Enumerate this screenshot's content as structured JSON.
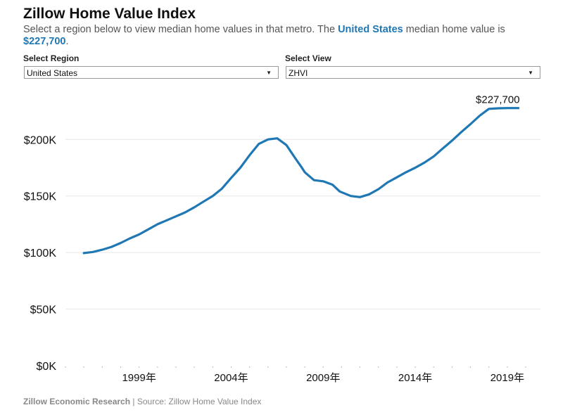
{
  "header": {
    "title": "Zillow Home Value Index",
    "subtitle_before": "Select a region below to view median home values in that metro. The ",
    "subtitle_region": "United States",
    "subtitle_mid": " median home value is ",
    "subtitle_value": "$227,700",
    "subtitle_after": "."
  },
  "controls": {
    "region_label": "Select Region",
    "region_value": "United States",
    "view_label": "Select View",
    "view_value": "ZHVI"
  },
  "footer": {
    "source_org": "Zillow Economic Research",
    "separator": " | ",
    "source_text": "Source: Zillow Home Value Index"
  },
  "colors": {
    "line": "#1f77b4",
    "accent": "#1f77b4"
  },
  "chart_data": {
    "type": "line",
    "title": "",
    "xlabel": "",
    "ylabel": "",
    "ylim": [
      0,
      230000
    ],
    "xlim": [
      1995.0,
      2020.8
    ],
    "y_ticks": [
      0,
      50000,
      100000,
      150000,
      200000
    ],
    "y_tick_labels": [
      "$0K",
      "$50K",
      "$100K",
      "$150K",
      "$200K"
    ],
    "x_ticks": [
      1999,
      2004,
      2009,
      2014,
      2019
    ],
    "x_tick_labels": [
      "1999年",
      "2004年",
      "2009年",
      "2014年",
      "2019年"
    ],
    "grid": true,
    "end_label": "$227,700",
    "series": [
      {
        "x": [
          1996.0,
          1996.5,
          1997.0,
          1997.5,
          1998.0,
          1998.5,
          1999.0,
          1999.5,
          2000.0,
          2000.5,
          2001.0,
          2001.5,
          2002.0,
          2002.5,
          2003.0,
          2003.5,
          2004.0,
          2004.5,
          2005.0,
          2005.5,
          2006.0,
          2006.5,
          2007.0,
          2007.5,
          2007.8,
          2008.0,
          2008.5,
          2009.0,
          2009.5,
          2009.9,
          2010.5,
          2011.0,
          2011.5,
          2012.0,
          2012.5,
          2013.0,
          2013.5,
          2014.0,
          2014.5,
          2015.0,
          2015.5,
          2016.0,
          2016.5,
          2017.0,
          2017.5,
          2018.0,
          2018.5,
          2019.0,
          2019.3,
          2019.6
        ],
        "y": [
          99500,
          100500,
          102500,
          105000,
          108500,
          112500,
          116000,
          120500,
          125000,
          128500,
          132000,
          135500,
          140000,
          145000,
          150000,
          156500,
          166000,
          175000,
          186000,
          196000,
          200000,
          201000,
          195000,
          183000,
          176000,
          171000,
          164000,
          163000,
          160000,
          154000,
          150000,
          149000,
          151500,
          156000,
          162000,
          166500,
          171000,
          175000,
          179500,
          185000,
          192000,
          199000,
          206500,
          213500,
          221000,
          227000,
          227500,
          227700,
          227700,
          227700
        ]
      }
    ]
  }
}
